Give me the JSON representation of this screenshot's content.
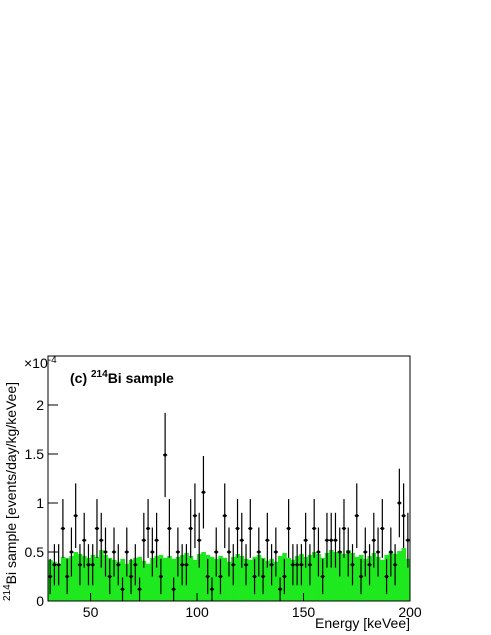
{
  "chart_data": {
    "type": "histogram",
    "title": "(c) ",
    "title_superscript": "214",
    "title_rest": "Bi sample",
    "x_label": "Energy [keVee]",
    "y_label_superscript": "214",
    "y_label": "Bi sample [events/day/kg/keVee]",
    "y_multiplier": "×10",
    "y_multiplier_exp": "-4",
    "xlim": [
      30,
      200
    ],
    "ylim": [
      0,
      2.5
    ],
    "xticks": [
      50,
      100,
      150,
      200
    ],
    "yticks": [
      0,
      0.5,
      1,
      1.5,
      2
    ],
    "bins": [
      30,
      32,
      34,
      36,
      38,
      40,
      42,
      44,
      46,
      48,
      50,
      52,
      54,
      56,
      58,
      60,
      62,
      64,
      66,
      68,
      70,
      72,
      74,
      76,
      78,
      80,
      82,
      84,
      86,
      88,
      90,
      92,
      94,
      96,
      98,
      100,
      102,
      104,
      106,
      108,
      110,
      112,
      114,
      116,
      118,
      120,
      122,
      124,
      126,
      128,
      130,
      132,
      134,
      136,
      138,
      140,
      142,
      144,
      146,
      148,
      150,
      152,
      154,
      156,
      158,
      160,
      162,
      164,
      166,
      168,
      170,
      172,
      174,
      176,
      178,
      180,
      182,
      184,
      186,
      188,
      190,
      192,
      194,
      196,
      198,
      200
    ],
    "color": "#1ee81e",
    "values": [
      0.42,
      0.4,
      0.38,
      0.45,
      0.44,
      0.46,
      0.5,
      0.48,
      0.46,
      0.44,
      0.47,
      0.45,
      0.52,
      0.47,
      0.44,
      0.42,
      0.4,
      0.43,
      0.38,
      0.42,
      0.44,
      0.45,
      0.41,
      0.38,
      0.44,
      0.46,
      0.47,
      0.44,
      0.46,
      0.43,
      0.45,
      0.47,
      0.49,
      0.46,
      0.42,
      0.48,
      0.5,
      0.47,
      0.45,
      0.43,
      0.46,
      0.44,
      0.4,
      0.45,
      0.48,
      0.46,
      0.43,
      0.42,
      0.45,
      0.47,
      0.44,
      0.41,
      0.43,
      0.4,
      0.46,
      0.49,
      0.44,
      0.42,
      0.46,
      0.48,
      0.45,
      0.47,
      0.5,
      0.48,
      0.44,
      0.49,
      0.52,
      0.5,
      0.51,
      0.48,
      0.52,
      0.49,
      0.45,
      0.47,
      0.43,
      0.46,
      0.49,
      0.45,
      0.42,
      0.47,
      0.5,
      0.48,
      0.51,
      0.54,
      0.43
    ],
    "data": {
      "color": "#000000",
      "values": [
        0.25,
        0.37,
        0.37,
        0.74,
        0.25,
        0.5,
        0.87,
        0.37,
        0.62,
        0.37,
        0.37,
        0.74,
        0.62,
        0.5,
        0.25,
        0.5,
        0.37,
        0.12,
        0.5,
        0.25,
        0.37,
        0.12,
        0.62,
        0.74,
        0.5,
        0.62,
        0.25,
        1.49,
        0.74,
        0.12,
        0.5,
        0.37,
        0.37,
        0.74,
        0.87,
        0.62,
        1.11,
        0.25,
        0.12,
        0.5,
        0.25,
        0.87,
        0.5,
        0.37,
        0.74,
        0.62,
        0.37,
        0.74,
        0.25,
        0.5,
        0.25,
        0.62,
        0.37,
        0.5,
        0.12,
        0.25,
        0.74,
        0.37,
        0.37,
        0.37,
        0.62,
        0.37,
        0.74,
        0.5,
        0.25,
        0.62,
        0.62,
        0.62,
        0.5,
        0.74,
        0.5,
        0.37,
        0.87,
        0.25,
        0.5,
        0.37,
        0.62,
        0.5,
        0.74,
        0.25,
        0.5,
        0.37,
        1.0,
        0.87,
        0.62
      ],
      "errors": [
        0.18,
        0.21,
        0.21,
        0.3,
        0.18,
        0.25,
        0.33,
        0.21,
        0.28,
        0.21,
        0.21,
        0.3,
        0.28,
        0.25,
        0.18,
        0.25,
        0.21,
        0.12,
        0.25,
        0.18,
        0.21,
        0.12,
        0.28,
        0.3,
        0.25,
        0.28,
        0.18,
        0.43,
        0.3,
        0.12,
        0.25,
        0.21,
        0.21,
        0.3,
        0.33,
        0.28,
        0.37,
        0.18,
        0.12,
        0.25,
        0.18,
        0.33,
        0.25,
        0.21,
        0.3,
        0.28,
        0.21,
        0.3,
        0.18,
        0.25,
        0.18,
        0.28,
        0.21,
        0.25,
        0.12,
        0.18,
        0.3,
        0.21,
        0.21,
        0.21,
        0.28,
        0.21,
        0.3,
        0.25,
        0.18,
        0.28,
        0.28,
        0.28,
        0.25,
        0.3,
        0.25,
        0.21,
        0.33,
        0.18,
        0.25,
        0.21,
        0.28,
        0.25,
        0.3,
        0.18,
        0.25,
        0.21,
        0.35,
        0.33,
        0.28
      ]
    }
  }
}
